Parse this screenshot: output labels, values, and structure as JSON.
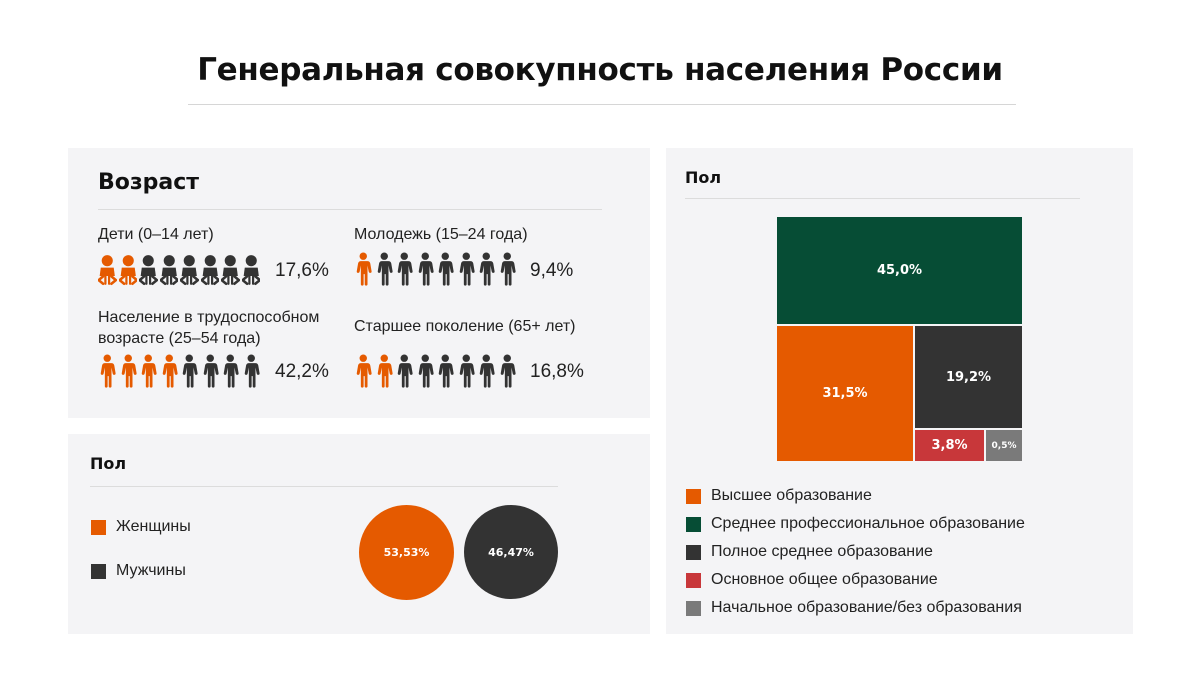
{
  "title": "Генеральная совокупность населения России",
  "colors": {
    "orange": "#e55a00",
    "dark": "#333333",
    "green": "#064d35",
    "red": "#c8373a",
    "gray": "#7a7a7a"
  },
  "age_panel": {
    "title": "Возраст",
    "groups": [
      {
        "label": "Дети (0–14 лет)",
        "value_text": "17,6%",
        "value": 17.6,
        "filled_icons": 2,
        "total_icons": 8,
        "icon": "baby-icon"
      },
      {
        "label": "Молодежь (15–24 года)",
        "value_text": "9,4%",
        "value": 9.4,
        "filled_icons": 1,
        "total_icons": 8,
        "icon": "person-icon"
      },
      {
        "label": "Население в трудоспособном возрасте (25–54 года)",
        "value_text": "42,2%",
        "value": 42.2,
        "filled_icons": 4,
        "total_icons": 8,
        "icon": "person-icon"
      },
      {
        "label": "Старшее поколение (65+ лет)",
        "value_text": "16,8%",
        "value": 16.8,
        "filled_icons": 2,
        "total_icons": 8,
        "icon": "person-icon"
      }
    ]
  },
  "sex_panel": {
    "title": "Пол",
    "legend": [
      {
        "label": "Женщины",
        "color": "#e55a00"
      },
      {
        "label": "Мужчины",
        "color": "#333333"
      }
    ]
  },
  "edu_panel": {
    "title": "Пол",
    "legend": [
      {
        "label": "Высшее образование",
        "color": "#e55a00"
      },
      {
        "label": "Среднее профессиональное образование",
        "color": "#064d35"
      },
      {
        "label": "Полное среднее образование",
        "color": "#333333"
      },
      {
        "label": "Основное общее образование",
        "color": "#c8373a"
      },
      {
        "label": "Начальное образование/без образования",
        "color": "#7a7a7a"
      }
    ]
  },
  "chart_data": [
    {
      "type": "bubble",
      "title": "Пол",
      "categories": [
        "Женщины",
        "Мужчины"
      ],
      "values": [
        53.53,
        46.47
      ],
      "labels": [
        "53,53%",
        "46,47%"
      ],
      "colors": [
        "#e55a00",
        "#333333"
      ]
    },
    {
      "type": "treemap",
      "title": "Пол",
      "categories": [
        "Среднее профессиональное образование",
        "Высшее образование",
        "Полное среднее образование",
        "Основное общее образование",
        "Начальное образование/без образования"
      ],
      "values": [
        45.0,
        31.5,
        19.2,
        3.8,
        0.5
      ],
      "labels": [
        "45,0%",
        "31,5%",
        "19,2%",
        "3,8%",
        "0,5%"
      ],
      "colors": [
        "#064d35",
        "#e55a00",
        "#333333",
        "#c8373a",
        "#7a7a7a"
      ]
    }
  ]
}
